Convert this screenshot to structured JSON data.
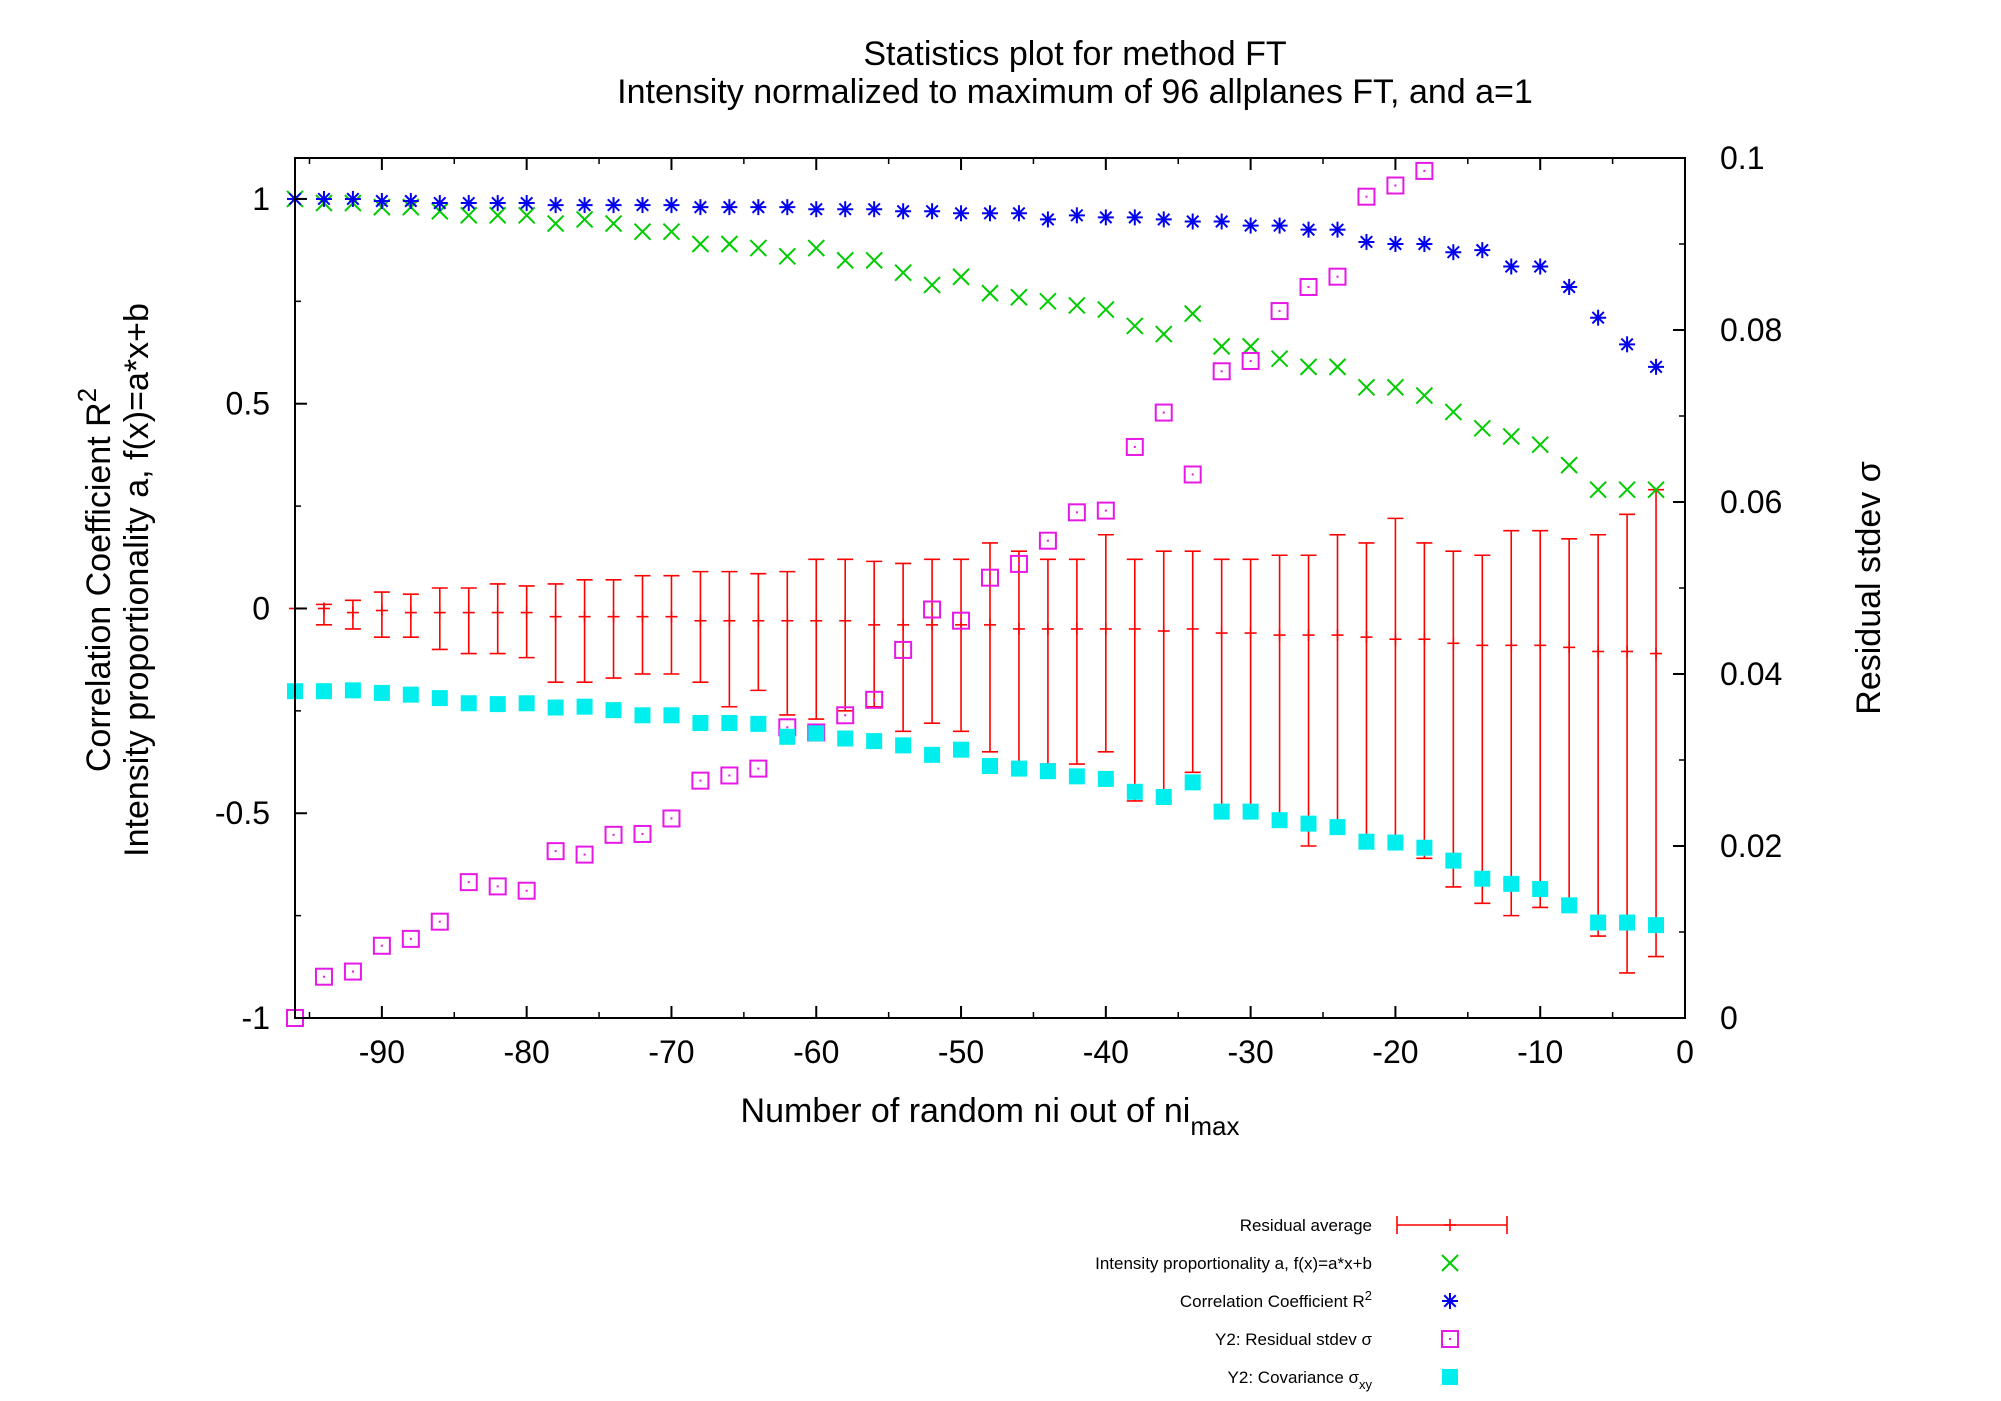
{
  "colors": {
    "residual_average": "#ff0000",
    "intensity_a": "#00cc00",
    "correlation_r2": "#0000ee",
    "residual_stdev": "#e619e6",
    "covariance": "#00eeee"
  },
  "chart_data": {
    "type": "scatter",
    "title": "Statistics plot for method FT",
    "subtitle": "Intensity normalized to maximum of 96 allplanes FT, and a=1",
    "xlabel_main": "Number of random ni out of ni",
    "xlabel_sub": "max",
    "ylabel_line1_main": "Correlation Coefficient R",
    "ylabel_line1_sup": "2",
    "ylabel_line2": "Intensity proportionality a, f(x)=a*x+b",
    "y2label": "Residual stdev σ",
    "xlim": [
      -96,
      0
    ],
    "ylim": [
      -1,
      1.1
    ],
    "y2lim": [
      0,
      0.1
    ],
    "xticks": [
      "-90",
      "-80",
      "-70",
      "-60",
      "-50",
      "-40",
      "-30",
      "-20",
      "-10",
      "0"
    ],
    "yticks": [
      "-1",
      "-0.5",
      "0",
      "0.5",
      "1"
    ],
    "y2ticks": [
      "0",
      "0.02",
      "0.04",
      "0.06",
      "0.08",
      "0.1"
    ],
    "legend_position": "bottom-center, below plot",
    "grid": false,
    "series": [
      {
        "name": "Residual average",
        "marker": "errorbar-plus",
        "axis": "y",
        "x": [
          -94,
          -92,
          -90,
          -88,
          -86,
          -84,
          -82,
          -80,
          -78,
          -76,
          -74,
          -72,
          -70,
          -68,
          -66,
          -64,
          -62,
          -60,
          -58,
          -56,
          -54,
          -52,
          -50,
          -48,
          -46,
          -44,
          -42,
          -40,
          -38,
          -36,
          -34,
          -32,
          -30,
          -28,
          -26,
          -24,
          -22,
          -20,
          -18,
          -16,
          -14,
          -12,
          -10,
          -8,
          -6,
          -4,
          -2
        ],
        "y": [
          0,
          -0.01,
          -0.005,
          -0.01,
          -0.01,
          -0.01,
          -0.01,
          -0.01,
          -0.02,
          -0.02,
          -0.02,
          -0.02,
          -0.02,
          -0.03,
          -0.03,
          -0.03,
          -0.03,
          -0.03,
          -0.03,
          -0.04,
          -0.04,
          -0.04,
          -0.04,
          -0.04,
          -0.05,
          -0.05,
          -0.05,
          -0.05,
          -0.05,
          -0.055,
          -0.05,
          -0.06,
          -0.06,
          -0.065,
          -0.065,
          -0.065,
          -0.07,
          -0.075,
          -0.075,
          -0.085,
          -0.09,
          -0.09,
          -0.09,
          -0.095,
          -0.105,
          -0.105,
          -0.11
        ],
        "ylow": [
          -0.04,
          -0.05,
          -0.07,
          -0.07,
          -0.1,
          -0.11,
          -0.11,
          -0.12,
          -0.18,
          -0.18,
          -0.17,
          -0.16,
          -0.16,
          -0.18,
          -0.24,
          -0.2,
          -0.26,
          -0.27,
          -0.25,
          -0.24,
          -0.3,
          -0.28,
          -0.3,
          -0.35,
          -0.38,
          -0.38,
          -0.38,
          -0.35,
          -0.47,
          -0.47,
          -0.4,
          -0.48,
          -0.48,
          -0.5,
          -0.58,
          -0.55,
          -0.57,
          -0.57,
          -0.61,
          -0.68,
          -0.72,
          -0.75,
          -0.73,
          -0.71,
          -0.8,
          -0.89,
          -0.85
        ],
        "yhigh": [
          0.01,
          0.02,
          0.04,
          0.035,
          0.05,
          0.05,
          0.06,
          0.055,
          0.06,
          0.07,
          0.07,
          0.08,
          0.08,
          0.09,
          0.09,
          0.085,
          0.09,
          0.12,
          0.12,
          0.115,
          0.11,
          0.12,
          0.12,
          0.16,
          0.14,
          0.12,
          0.12,
          0.18,
          0.12,
          0.14,
          0.14,
          0.12,
          0.12,
          0.13,
          0.13,
          0.18,
          0.16,
          0.22,
          0.16,
          0.14,
          0.13,
          0.19,
          0.19,
          0.17,
          0.18,
          0.23,
          0.29
        ]
      },
      {
        "name": "Intensity proportionality a, f(x)=a*x+b",
        "marker": "x",
        "axis": "y",
        "x": [
          -96,
          -94,
          -92,
          -90,
          -88,
          -86,
          -84,
          -82,
          -80,
          -78,
          -76,
          -74,
          -72,
          -70,
          -68,
          -66,
          -64,
          -62,
          -60,
          -58,
          -56,
          -54,
          -52,
          -50,
          -48,
          -46,
          -44,
          -42,
          -40,
          -38,
          -36,
          -34,
          -32,
          -30,
          -28,
          -26,
          -24,
          -22,
          -20,
          -18,
          -16,
          -14,
          -12,
          -10,
          -8,
          -6,
          -4,
          -2
        ],
        "y": [
          1,
          0.99,
          0.99,
          0.98,
          0.98,
          0.97,
          0.96,
          0.96,
          0.96,
          0.94,
          0.95,
          0.94,
          0.92,
          0.92,
          0.89,
          0.89,
          0.88,
          0.86,
          0.88,
          0.85,
          0.85,
          0.82,
          0.79,
          0.81,
          0.77,
          0.76,
          0.75,
          0.74,
          0.73,
          0.69,
          0.67,
          0.72,
          0.64,
          0.64,
          0.61,
          0.59,
          0.59,
          0.54,
          0.54,
          0.52,
          0.48,
          0.44,
          0.42,
          0.4,
          0.35,
          0.29,
          0.29,
          0.29
        ]
      },
      {
        "name": "Correlation Coefficient R²",
        "marker": "asterisk",
        "axis": "y",
        "x": [
          -96,
          -94,
          -92,
          -90,
          -88,
          -86,
          -84,
          -82,
          -80,
          -78,
          -76,
          -74,
          -72,
          -70,
          -68,
          -66,
          -64,
          -62,
          -60,
          -58,
          -56,
          -54,
          -52,
          -50,
          -48,
          -46,
          -44,
          -42,
          -40,
          -38,
          -36,
          -34,
          -32,
          -30,
          -28,
          -26,
          -24,
          -22,
          -20,
          -18,
          -16,
          -14,
          -12,
          -10,
          -8,
          -6,
          -4,
          -2
        ],
        "y": [
          1,
          1,
          1,
          0.995,
          0.995,
          0.99,
          0.99,
          0.99,
          0.99,
          0.985,
          0.985,
          0.985,
          0.985,
          0.985,
          0.98,
          0.98,
          0.98,
          0.98,
          0.975,
          0.975,
          0.975,
          0.97,
          0.97,
          0.965,
          0.965,
          0.965,
          0.95,
          0.96,
          0.955,
          0.955,
          0.95,
          0.945,
          0.945,
          0.935,
          0.935,
          0.925,
          0.925,
          0.895,
          0.89,
          0.89,
          0.87,
          0.875,
          0.835,
          0.835,
          0.785,
          0.71,
          0.645,
          0.59
        ]
      },
      {
        "name": "Y2: Residual stdev σ",
        "marker": "square-dot",
        "axis": "y2",
        "x": [
          -96,
          -94,
          -92,
          -90,
          -88,
          -86,
          -84,
          -82,
          -80,
          -78,
          -76,
          -74,
          -72,
          -70,
          -68,
          -66,
          -64,
          -62,
          -60,
          -58,
          -56,
          -54,
          -52,
          -50,
          -48,
          -46,
          -44,
          -42,
          -40,
          -38,
          -36,
          -34,
          -32,
          -30,
          -28,
          -26,
          -24,
          -22,
          -20,
          -18
        ],
        "y": [
          0,
          0.0048,
          0.0054,
          0.0084,
          0.0092,
          0.0112,
          0.0158,
          0.0153,
          0.0148,
          0.0194,
          0.019,
          0.0213,
          0.0214,
          0.0232,
          0.0276,
          0.0282,
          0.029,
          0.0338,
          0.0332,
          0.0352,
          0.037,
          0.0428,
          0.0475,
          0.0462,
          0.0512,
          0.0528,
          0.0555,
          0.0588,
          0.059,
          0.0664,
          0.0704,
          0.0632,
          0.0752,
          0.0764,
          0.0822,
          0.085,
          0.0862,
          0.0955,
          0.0968,
          0.0985
        ]
      },
      {
        "name": "Y2: Covariance σxy",
        "marker": "filled-square",
        "axis": "y2",
        "x": [
          -96,
          -94,
          -92,
          -90,
          -88,
          -86,
          -84,
          -82,
          -80,
          -78,
          -76,
          -74,
          -72,
          -70,
          -68,
          -66,
          -64,
          -62,
          -60,
          -58,
          -56,
          -54,
          -52,
          -50,
          -48,
          -46,
          -44,
          -42,
          -40,
          -38,
          -36,
          -34,
          -32,
          -30,
          -28,
          -26,
          -24,
          -22,
          -20,
          -18,
          -16,
          -14,
          -12,
          -10,
          -8,
          -6,
          -4,
          -2
        ],
        "y": [
          0.038,
          0.038,
          0.0381,
          0.0378,
          0.0376,
          0.0372,
          0.0366,
          0.0365,
          0.0366,
          0.0361,
          0.0362,
          0.0358,
          0.0352,
          0.0352,
          0.0343,
          0.0343,
          0.0342,
          0.0327,
          0.0331,
          0.0325,
          0.0322,
          0.0317,
          0.0306,
          0.0312,
          0.0293,
          0.029,
          0.0287,
          0.0281,
          0.0278,
          0.0263,
          0.0257,
          0.0274,
          0.024,
          0.024,
          0.023,
          0.0226,
          0.0222,
          0.0205,
          0.0204,
          0.0198,
          0.0183,
          0.0162,
          0.0156,
          0.015,
          0.0131,
          0.0111,
          0.0111,
          0.0108
        ]
      }
    ]
  }
}
